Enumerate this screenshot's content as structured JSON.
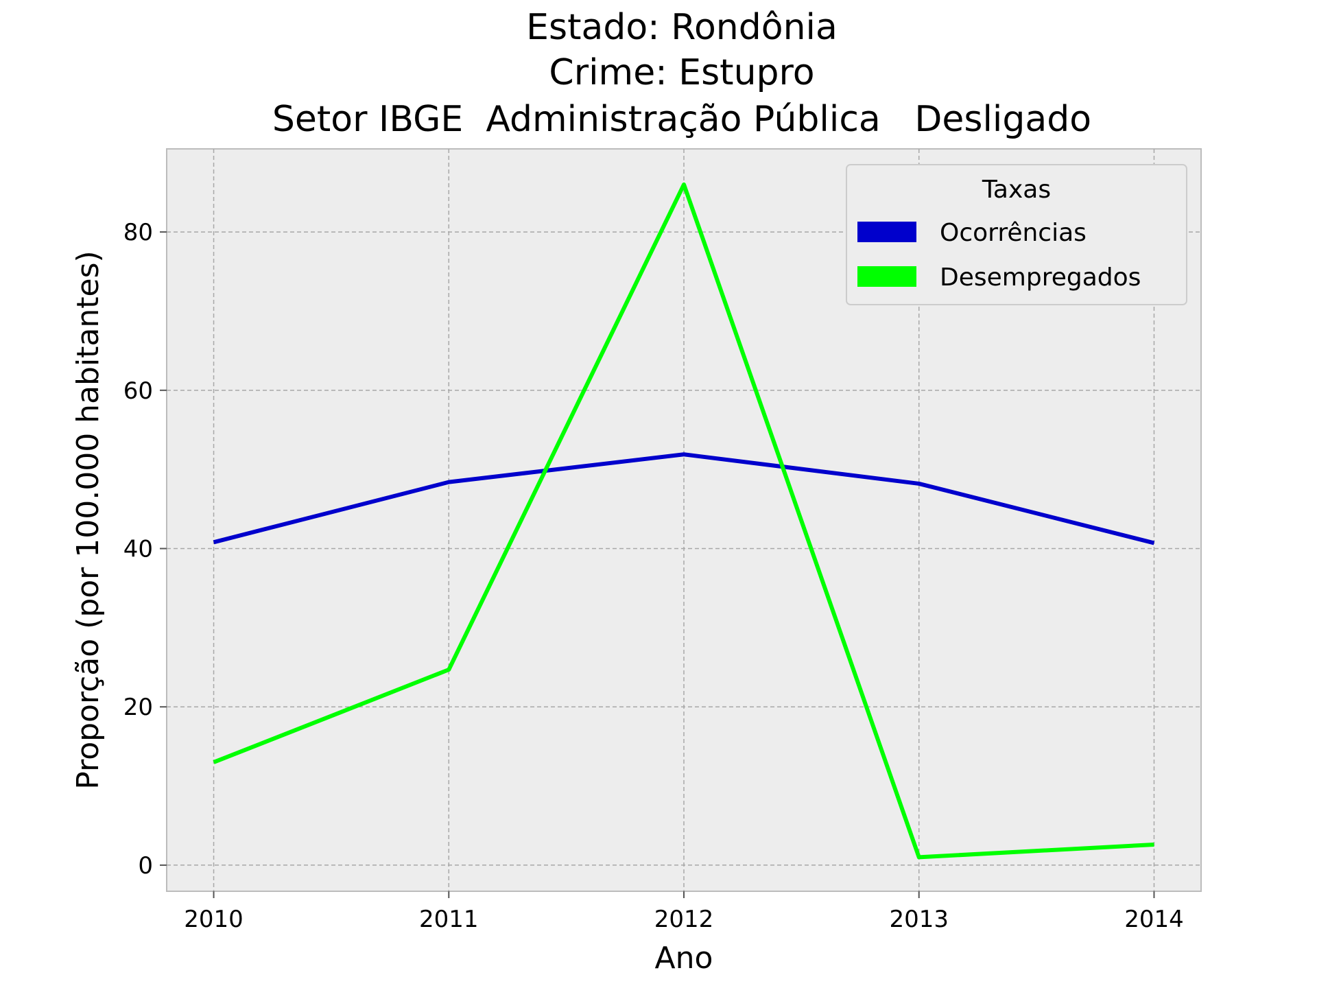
{
  "chart_data": {
    "type": "line",
    "title_lines": [
      "Estado: Rondônia",
      "Crime: Estupro",
      "Setor IBGE  Administração Pública   Desligado"
    ],
    "xlabel": "Ano",
    "ylabel": "Proporção (por 100.000 habitantes)",
    "x": [
      2010,
      2011,
      2012,
      2013,
      2014
    ],
    "x_tick_labels": [
      "2010",
      "2011",
      "2012",
      "2013",
      "2014"
    ],
    "y_ticks": [
      0,
      20,
      40,
      60,
      80
    ],
    "y_tick_labels": [
      "0",
      "20",
      "40",
      "60",
      "80"
    ],
    "xlim": [
      2009.8,
      2014.2
    ],
    "ylim": [
      -3.3,
      90.5
    ],
    "grid": true,
    "legend": {
      "title": "Taxas",
      "placement": "top-right"
    },
    "series": [
      {
        "name": "Ocorrências",
        "color": "#0000cc",
        "values": [
          40.8,
          48.4,
          51.9,
          48.2,
          40.7
        ]
      },
      {
        "name": "Desempregados",
        "color": "#00ff00",
        "values": [
          13.0,
          24.7,
          86.0,
          1.0,
          2.6
        ]
      }
    ],
    "background_color": "#ededed"
  }
}
